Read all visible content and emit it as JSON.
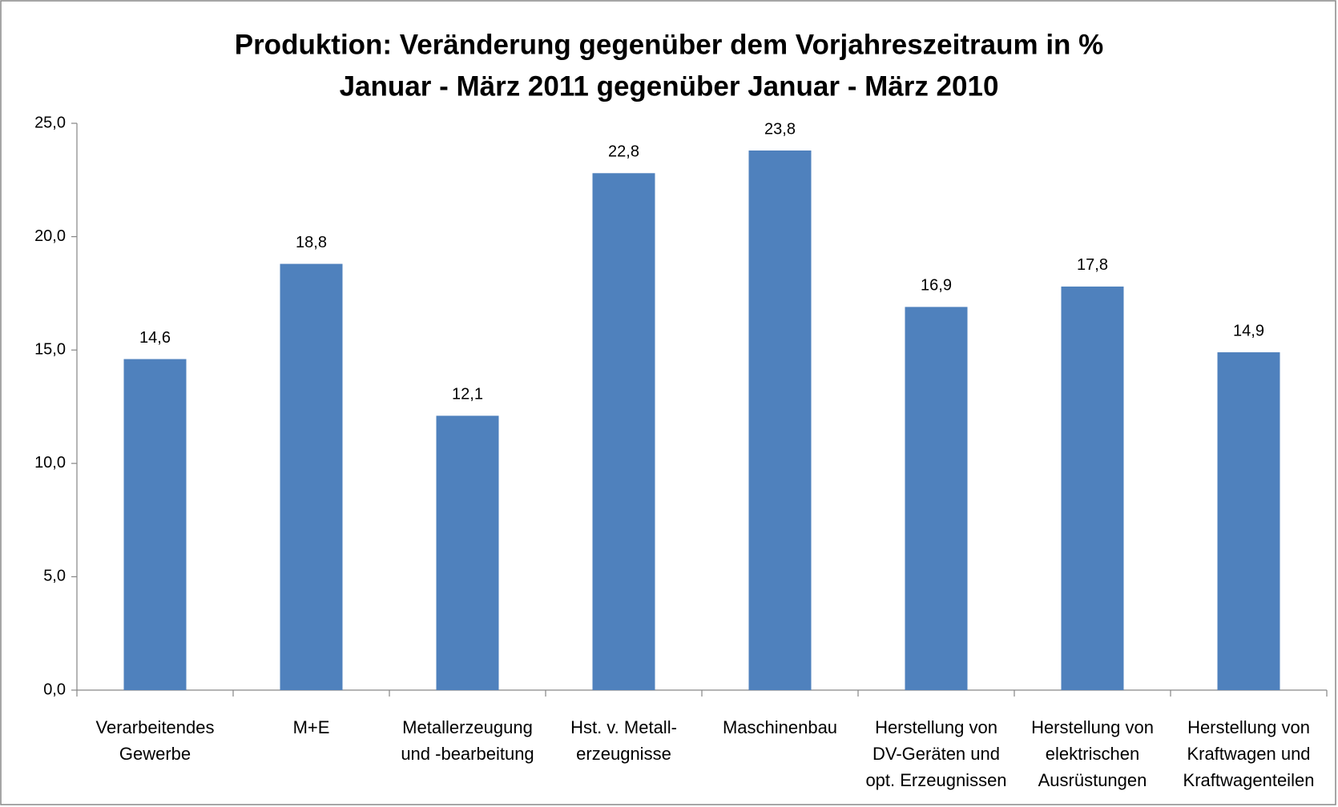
{
  "chart_data": {
    "type": "bar",
    "title": "Produktion: Veränderung gegenüber dem Vorjahreszeitraum in %",
    "subtitle": "Januar - März 2011 gegenüber Januar - März 2010",
    "categories": [
      "Verarbeitendes\nGewerbe",
      "M+E",
      "Metallerzeugung\nund -bearbeitung",
      "Hst. v. Metall-\nerzeugnisse",
      "Maschinenbau",
      "Herstellung von\nDV-Geräten und\nopt. Erzeugnissen",
      "Herstellung von\nelektrischen\nAusrüstungen",
      "Herstellung von\nKraftwagen und\nKraftwagenteilen"
    ],
    "values": [
      14.6,
      18.8,
      12.1,
      22.8,
      23.8,
      16.9,
      17.8,
      14.9
    ],
    "value_labels": [
      "14,6",
      "18,8",
      "12,1",
      "22,8",
      "23,8",
      "16,9",
      "17,8",
      "14,9"
    ],
    "color": "#4f81bd",
    "ylim": [
      0,
      25
    ],
    "yticks": [
      {
        "value": 0,
        "label": "0,0"
      },
      {
        "value": 5,
        "label": "5,0"
      },
      {
        "value": 10,
        "label": "10,0"
      },
      {
        "value": 15,
        "label": "15,0"
      },
      {
        "value": 20,
        "label": "20,0"
      },
      {
        "value": 25,
        "label": "25,0"
      }
    ],
    "grid": false
  }
}
